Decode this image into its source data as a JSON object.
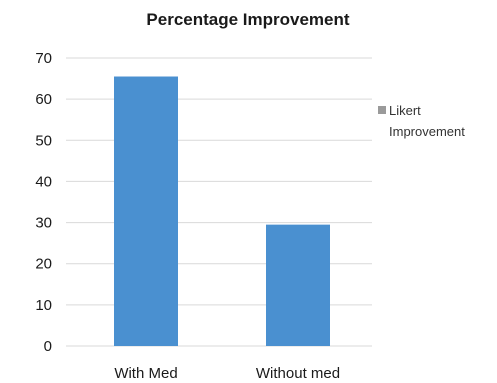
{
  "chart_data": {
    "type": "bar",
    "title": "Percentage Improvement",
    "categories": [
      "With Med",
      "Without med"
    ],
    "series": [
      {
        "name": "Likert Improvement",
        "values": [
          65.5,
          29.5
        ],
        "color": "#4a90d0"
      }
    ],
    "yticks": [
      0,
      10,
      20,
      30,
      40,
      50,
      60,
      70
    ],
    "ylim": [
      0,
      70
    ],
    "xlabel": "",
    "ylabel": "",
    "grid": true,
    "legend": {
      "position": "right",
      "lines": [
        "Likert",
        "Improvement"
      ],
      "swatch_color": "#9a9a9a"
    },
    "gridline_color": "#d9d9d9"
  }
}
